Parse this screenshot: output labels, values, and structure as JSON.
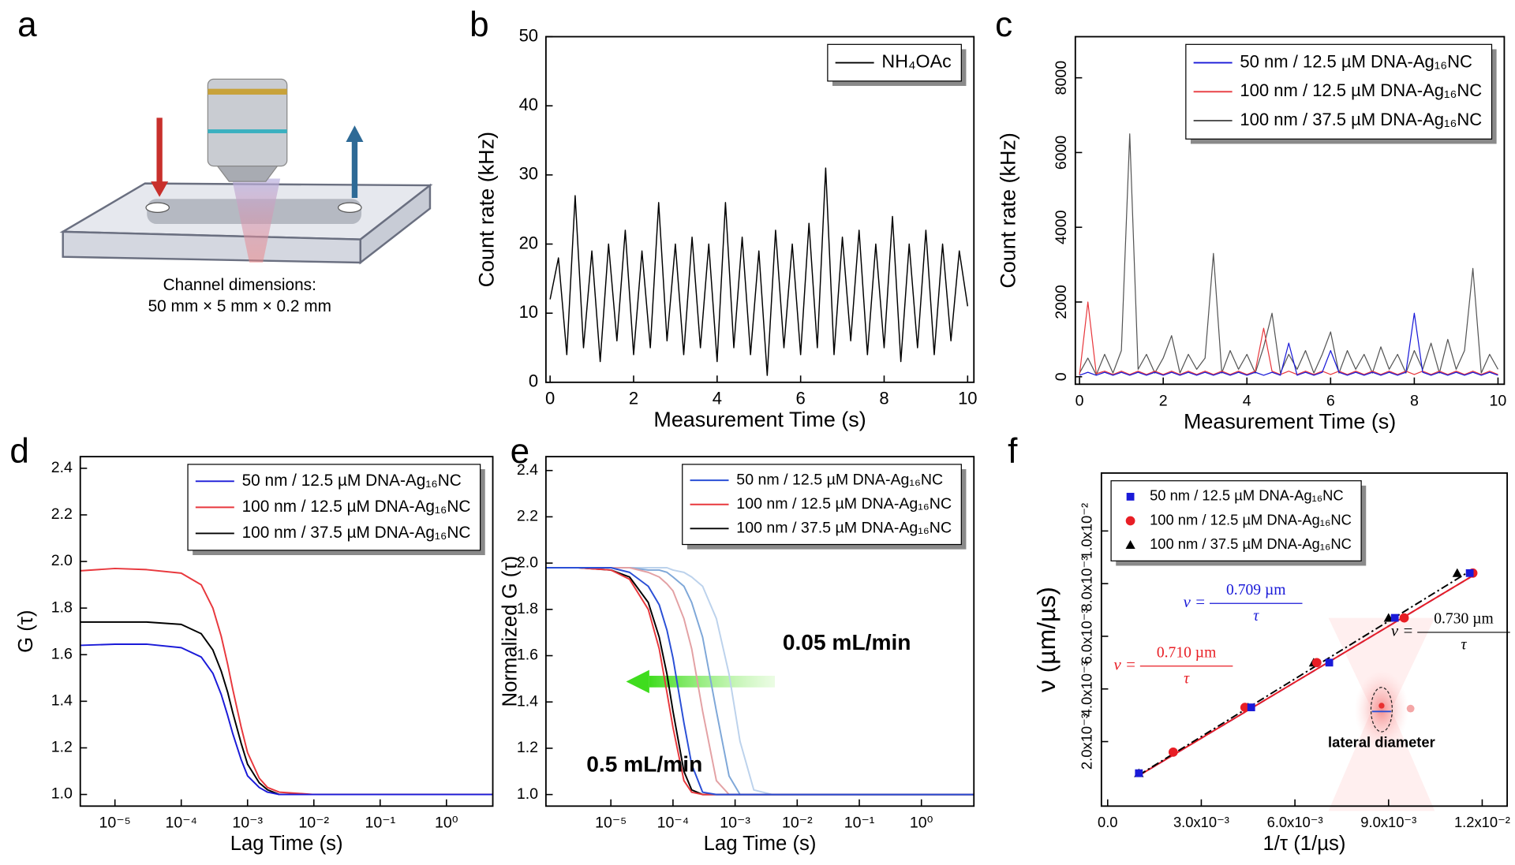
{
  "panel_labels": [
    "a",
    "b",
    "c",
    "d",
    "e",
    "f"
  ],
  "diagram": {
    "caption": [
      "Channel dimensions:",
      "50  mm × 5 mm × 0.2 mm"
    ]
  },
  "chart_data": [
    {
      "type": "line",
      "xlabel": "Measurement Time (s)",
      "ylabel": "Count rate (kHz)",
      "legend": "upper right",
      "x": [
        0,
        0.2,
        0.4,
        0.6,
        0.8,
        1,
        1.2,
        1.4,
        1.6,
        1.8,
        2,
        2.2,
        2.4,
        2.6,
        2.8,
        3,
        3.2,
        3.4,
        3.6,
        3.8,
        4,
        4.2,
        4.4,
        4.6,
        4.8,
        5,
        5.2,
        5.4,
        5.6,
        5.8,
        6,
        6.2,
        6.4,
        6.6,
        6.8,
        7,
        7.2,
        7.4,
        7.6,
        7.8,
        8,
        8.2,
        8.4,
        8.6,
        8.8,
        9,
        9.2,
        9.4,
        9.6,
        9.8,
        10
      ],
      "series": [
        {
          "name": "NH₄OAc",
          "color": "#000000",
          "values": [
            12,
            18,
            4,
            27,
            5,
            19,
            3,
            20,
            6,
            22,
            4,
            19,
            5,
            26,
            6,
            20,
            4,
            21,
            5,
            20,
            3,
            26,
            5,
            21,
            4,
            19,
            1,
            22,
            5,
            20,
            4,
            23,
            5,
            31,
            4,
            21,
            6,
            22,
            4,
            20,
            5,
            24,
            3,
            20,
            5,
            22,
            4,
            20,
            6,
            19,
            11
          ]
        }
      ],
      "xlim": [
        -0.1,
        10.15
      ],
      "ylim": [
        0,
        50
      ],
      "xticks": [
        0,
        2,
        4,
        6,
        8,
        10
      ],
      "yticks": [
        0,
        10,
        20,
        30,
        40,
        50
      ]
    },
    {
      "type": "line",
      "xlabel": "Measurement Time (s)",
      "ylabel": "Count rate (kHz)",
      "legend": "upper right",
      "x": [
        0,
        0.2,
        0.4,
        0.6,
        0.8,
        1,
        1.2,
        1.4,
        1.6,
        1.8,
        2,
        2.2,
        2.4,
        2.6,
        2.8,
        3,
        3.2,
        3.4,
        3.6,
        3.8,
        4,
        4.2,
        4.4,
        4.6,
        4.8,
        5,
        5.2,
        5.4,
        5.6,
        5.8,
        6,
        6.2,
        6.4,
        6.6,
        6.8,
        7,
        7.2,
        7.4,
        7.6,
        7.8,
        8,
        8.2,
        8.4,
        8.6,
        8.8,
        9,
        9.2,
        9.4,
        9.6,
        9.8,
        10
      ],
      "series": [
        {
          "name": "50 nm / 12.5 µM DNA-Ag₁₆NC",
          "color": "#1a1ad8",
          "values": [
            40,
            120,
            40,
            120,
            40,
            120,
            40,
            120,
            40,
            120,
            40,
            120,
            40,
            120,
            40,
            120,
            40,
            120,
            40,
            120,
            40,
            120,
            40,
            120,
            40,
            900,
            40,
            120,
            40,
            120,
            700,
            120,
            40,
            120,
            40,
            120,
            40,
            120,
            40,
            120,
            1700,
            120,
            40,
            120,
            40,
            120,
            40,
            120,
            40,
            120,
            40
          ]
        },
        {
          "name": "100 nm / 12.5 µM DNA-Ag₁₆NC",
          "color": "#e8383d",
          "values": [
            50,
            2000,
            80,
            150,
            60,
            150,
            60,
            150,
            60,
            150,
            60,
            150,
            60,
            150,
            60,
            150,
            60,
            150,
            60,
            150,
            60,
            150,
            1300,
            150,
            60,
            150,
            60,
            150,
            60,
            150,
            60,
            150,
            60,
            150,
            60,
            150,
            60,
            150,
            60,
            150,
            60,
            150,
            60,
            150,
            60,
            150,
            60,
            150,
            60,
            150,
            60
          ]
        },
        {
          "name": "100 nm / 37.5 µM DNA-Ag₁₆NC",
          "color": "#555555",
          "values": [
            100,
            500,
            50,
            600,
            100,
            700,
            6500,
            200,
            600,
            100,
            500,
            1100,
            100,
            600,
            200,
            500,
            3300,
            100,
            700,
            200,
            600,
            100,
            800,
            1700,
            100,
            600,
            200,
            700,
            100,
            600,
            1200,
            100,
            700,
            200,
            600,
            100,
            800,
            200,
            600,
            100,
            700,
            200,
            900,
            100,
            1000,
            200,
            700,
            2900,
            100,
            600,
            200
          ]
        }
      ],
      "xlim": [
        -0.1,
        10.15
      ],
      "ylim": [
        -200,
        9100
      ],
      "xticks": [
        0,
        2,
        4,
        6,
        8,
        10
      ],
      "yticks": [
        0,
        2000,
        4000,
        6000,
        8000
      ]
    },
    {
      "type": "line",
      "xscale": "log",
      "xlabel": "Lag Time (s)",
      "ylabel": "G (τ)",
      "legend": "upper right",
      "x": [
        3e-06,
        1e-05,
        3e-05,
        0.0001,
        0.0002,
        0.0003,
        0.0004,
        0.0005,
        0.0006,
        0.0008,
        0.001,
        0.0015,
        0.002,
        0.003,
        0.01,
        0.1,
        1,
        5
      ],
      "series": [
        {
          "name": "50 nm / 12.5 µM DNA-Ag₁₆NC",
          "color": "#1a1ad8",
          "values": [
            1.64,
            1.645,
            1.645,
            1.63,
            1.59,
            1.52,
            1.43,
            1.34,
            1.26,
            1.15,
            1.08,
            1.03,
            1.01,
            1.0,
            1.0,
            1.0,
            1.0,
            1.0
          ]
        },
        {
          "name": "100 nm / 12.5 µM DNA-Ag₁₆NC",
          "color": "#e8383d",
          "values": [
            1.96,
            1.97,
            1.965,
            1.95,
            1.9,
            1.8,
            1.68,
            1.56,
            1.45,
            1.29,
            1.18,
            1.07,
            1.03,
            1.01,
            1.0,
            1.0,
            1.0,
            1.0
          ]
        },
        {
          "name": "100 nm / 37.5 µM DNA-Ag₁₆NC",
          "color": "#000000",
          "values": [
            1.74,
            1.74,
            1.74,
            1.73,
            1.69,
            1.62,
            1.53,
            1.44,
            1.35,
            1.22,
            1.13,
            1.05,
            1.02,
            1.0,
            1.0,
            1.0,
            1.0,
            1.0
          ]
        }
      ],
      "xlim": [
        3e-06,
        5
      ],
      "ylim": [
        0.95,
        2.45
      ],
      "xticks": [
        {
          "value": 1e-05,
          "label": "10⁻⁵"
        },
        {
          "value": 0.0001,
          "label": "10⁻⁴"
        },
        {
          "value": 0.001,
          "label": "10⁻³"
        },
        {
          "value": 0.01,
          "label": "10⁻²"
        },
        {
          "value": 0.1,
          "label": "10⁻¹"
        },
        {
          "value": 1,
          "label": "10⁰"
        }
      ],
      "yticks": [
        {
          "value": 1,
          "label": "1.0"
        },
        1.2,
        1.4,
        1.6,
        1.8,
        {
          "value": 2,
          "label": "2.0"
        },
        2.2,
        2.4
      ]
    },
    {
      "type": "line",
      "xscale": "log",
      "xlabel": "Lag Time (s)",
      "ylabel": "Normalized G (τ)",
      "legend": "upper right",
      "annotations": [
        "0.05 mL/min",
        "0.5 mL/min"
      ],
      "x": [
        9e-07,
        3e-06,
        1e-05,
        2e-05,
        4e-05,
        6e-05,
        8e-05,
        0.0001,
        0.00015,
        0.0002,
        0.0003,
        0.0005,
        0.0008,
        0.0012,
        0.002,
        0.004,
        0.01,
        0.1,
        1,
        7
      ],
      "series": [
        {
          "name": "50 nm / 12.5 µM DNA-Ag₁₆NC",
          "color": "#2a4fd6",
          "values": [
            1.98,
            1.98,
            1.98,
            1.96,
            1.9,
            1.82,
            1.71,
            1.59,
            1.31,
            1.13,
            1.01,
            1.0,
            1.0,
            1.0,
            1.0,
            1.0,
            1.0,
            1.0,
            1.0,
            1.0
          ]
        },
        {
          "name": "100 nm / 12.5 µM DNA-Ag₁₆NC",
          "color": "#e8383d",
          "values": [
            1.98,
            1.98,
            1.97,
            1.93,
            1.8,
            1.63,
            1.44,
            1.29,
            1.06,
            1.01,
            1.0,
            1.0,
            1.0,
            1.0,
            1.0,
            1.0,
            1.0,
            1.0,
            1.0,
            1.0
          ]
        },
        {
          "name": "100 nm / 37.5 µM DNA-Ag₁₆NC",
          "color": "#000000",
          "values": [
            1.98,
            1.98,
            1.97,
            1.94,
            1.83,
            1.68,
            1.52,
            1.36,
            1.1,
            1.02,
            1.0,
            1.0,
            1.0,
            1.0,
            1.0,
            1.0,
            1.0,
            1.0,
            1.0,
            1.0
          ]
        },
        {
          "color": "#e3a1a4",
          "values": [
            1.98,
            1.98,
            1.98,
            1.98,
            1.96,
            1.94,
            1.91,
            1.88,
            1.76,
            1.63,
            1.36,
            1.06,
            1.0,
            1.0,
            1.0,
            1.0,
            1.0,
            1.0,
            1.0,
            1.0
          ]
        },
        {
          "color": "#7ea7d8",
          "values": [
            1.98,
            1.98,
            1.98,
            1.98,
            1.97,
            1.97,
            1.96,
            1.94,
            1.9,
            1.83,
            1.68,
            1.36,
            1.08,
            1.0,
            1.0,
            1.0,
            1.0,
            1.0,
            1.0,
            1.0
          ]
        },
        {
          "color": "#bcd2ec",
          "values": [
            1.98,
            1.98,
            1.98,
            1.98,
            1.98,
            1.98,
            1.98,
            1.97,
            1.96,
            1.94,
            1.9,
            1.76,
            1.52,
            1.23,
            1.02,
            1.0,
            1.0,
            1.0,
            1.0,
            1.0
          ]
        }
      ],
      "xlim": [
        9e-07,
        7
      ],
      "ylim": [
        0.95,
        2.46
      ],
      "xticks": [
        {
          "value": 1e-05,
          "label": "10⁻⁵"
        },
        {
          "value": 0.0001,
          "label": "10⁻⁴"
        },
        {
          "value": 0.001,
          "label": "10⁻³"
        },
        {
          "value": 0.01,
          "label": "10⁻²"
        },
        {
          "value": 0.1,
          "label": "10⁻¹"
        },
        {
          "value": 1,
          "label": "10⁰"
        }
      ],
      "yticks": [
        {
          "value": 1,
          "label": "1.0"
        },
        1.2,
        1.4,
        1.6,
        1.8,
        {
          "value": 2,
          "label": "2.0"
        },
        2.2,
        2.4
      ]
    },
    {
      "type": "scatter",
      "xlabel": "1/τ (1/µs)",
      "ylabel": "ν (µm/µs)",
      "legend": "upper left",
      "series": [
        {
          "name": "50 nm / 12.5 µM DNA-Ag₁₆NC",
          "color": "#1a1ad8",
          "marker": "square",
          "x": [
            0.001,
            0.0046,
            0.0071,
            0.0092,
            0.0116
          ],
          "values": [
            0.0008,
            0.0033,
            0.005,
            0.0067,
            0.0084
          ]
        },
        {
          "name": "100 nm / 12.5 µM DNA-Ag₁₆NC",
          "color": "#e81e25",
          "marker": "circle",
          "x": [
            0.0021,
            0.0044,
            0.0067,
            0.0095,
            0.0117
          ],
          "values": [
            0.0016,
            0.0033,
            0.005,
            0.0067,
            0.0084
          ]
        },
        {
          "name": "100 nm / 37.5 µM DNA-Ag₁₆NC",
          "color": "#000000",
          "marker": "triangle",
          "x": [
            0.001,
            0.0045,
            0.0066,
            0.009,
            0.0112
          ],
          "values": [
            0.0008,
            0.0033,
            0.005,
            0.0067,
            0.0084
          ]
        }
      ],
      "fit_lines": [
        {
          "color": "#1a1ad8",
          "dash": "8 4",
          "x": [
            0.001,
            0.0117
          ],
          "values": [
            0.00071,
            0.0083
          ]
        },
        {
          "color": "#e81e25",
          "dash": "none",
          "x": [
            0.001,
            0.0117
          ],
          "values": [
            0.00071,
            0.0083
          ]
        },
        {
          "color": "#000000",
          "dash": "8 3 2 3",
          "x": [
            0.001,
            0.0115
          ],
          "values": [
            0.00073,
            0.0084
          ]
        }
      ],
      "annotations": [
        {
          "lhs": "v =",
          "numerator": "0.709 µm",
          "denominator": "τ",
          "color": "#1a1ad8"
        },
        {
          "lhs": "v =",
          "numerator": "0.710 µm",
          "denominator": "τ",
          "color": "#e81e25"
        },
        {
          "lhs": "v =",
          "numerator": "0.730 µm",
          "denominator": "τ",
          "color": "#000000"
        }
      ],
      "note": "lateral diameter",
      "xlim": [
        -0.0002,
        0.0128
      ],
      "ylim": [
        -0.00045,
        0.0122
      ],
      "xticks": [
        {
          "value": 0,
          "label": "0.0"
        },
        {
          "value": 0.003,
          "label": "3.0x10⁻³"
        },
        {
          "value": 0.006,
          "label": "6.0x10⁻³"
        },
        {
          "value": 0.009,
          "label": "9.0x10⁻³"
        },
        {
          "value": 0.012,
          "label": "1.2x10⁻²"
        }
      ],
      "yticks": [
        {
          "value": 0.002,
          "label": "2.0x10⁻³"
        },
        {
          "value": 0.004,
          "label": "4.0x10⁻³"
        },
        {
          "value": 0.006,
          "label": "6.0x10⁻³"
        },
        {
          "value": 0.008,
          "label": "8.0x10⁻³"
        },
        {
          "value": 0.01,
          "label": "1.0x10⁻²"
        }
      ]
    }
  ]
}
